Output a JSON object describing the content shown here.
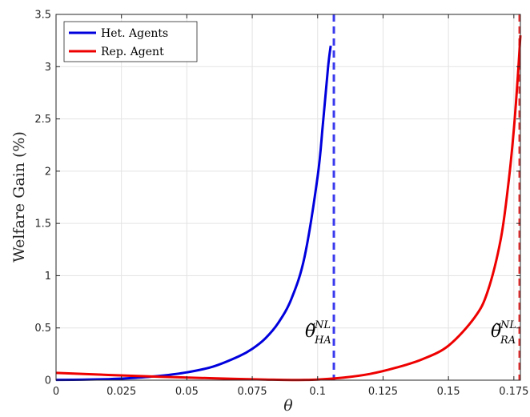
{
  "chart_data": {
    "type": "line",
    "title": "",
    "xlabel": "θ",
    "ylabel": "Welfare Gain (%)",
    "xlim": [
      0,
      0.1775
    ],
    "ylim": [
      0,
      3.5
    ],
    "xticks": [
      0,
      0.025,
      0.05,
      0.075,
      0.1,
      0.125,
      0.15,
      0.175
    ],
    "xtick_labels": [
      "0",
      "0.025",
      "0.05",
      "0.075",
      "0.1",
      "0.125",
      "0.15",
      "0.175"
    ],
    "yticks": [
      0,
      0.5,
      1,
      1.5,
      2,
      2.5,
      3,
      3.5
    ],
    "ytick_labels": [
      "0",
      "0.5",
      "1",
      "1.5",
      "2",
      "2.5",
      "3",
      "3.5"
    ],
    "grid": true,
    "legend_position": "top-left",
    "series": [
      {
        "name": "Het. Agents",
        "color": "#0000dd",
        "x": [
          0,
          0.01,
          0.02,
          0.025,
          0.03,
          0.04,
          0.05,
          0.06,
          0.07,
          0.075,
          0.08,
          0.085,
          0.09,
          0.095,
          0.1,
          0.102,
          0.104,
          0.105
        ],
        "y": [
          0.003,
          0.005,
          0.01,
          0.015,
          0.022,
          0.042,
          0.075,
          0.13,
          0.23,
          0.3,
          0.4,
          0.55,
          0.78,
          1.18,
          1.95,
          2.45,
          3.0,
          3.2
        ]
      },
      {
        "name": "Rep. Agent",
        "color": "#ee0000",
        "x": [
          0,
          0.02,
          0.04,
          0.06,
          0.08,
          0.09,
          0.1,
          0.11,
          0.12,
          0.13,
          0.14,
          0.15,
          0.16,
          0.165,
          0.17,
          0.173,
          0.175,
          0.1765,
          0.1775
        ],
        "y": [
          0.07,
          0.05,
          0.033,
          0.018,
          0.006,
          0.002,
          0.006,
          0.025,
          0.06,
          0.12,
          0.2,
          0.33,
          0.6,
          0.85,
          1.35,
          1.9,
          2.4,
          2.9,
          3.3
        ]
      }
    ],
    "vertical_lines": [
      {
        "x": 0.1062,
        "color": "#3a3aee",
        "style": "dashed"
      },
      {
        "x": 0.1772,
        "color": "#ee3333",
        "style": "dashed"
      }
    ],
    "annotations": [
      {
        "base": "θ̃",
        "sup": "NL",
        "sub": "HA",
        "x": 0.1062
      },
      {
        "base": "θ̃",
        "sup": "NL",
        "sub": "RA",
        "x": 0.1772
      }
    ]
  }
}
